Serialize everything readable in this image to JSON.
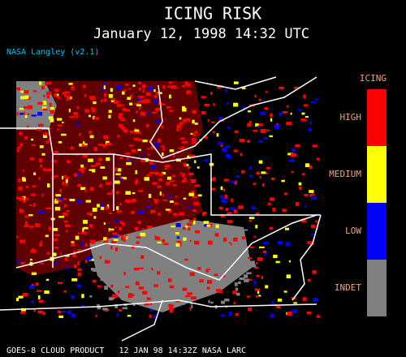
{
  "header": {
    "title": "ICING RISK",
    "subtitle": "January 12, 1998 14:32 UTC",
    "credit": "NASA Langley (v2.1)"
  },
  "legend": {
    "title": "ICING",
    "items": [
      {
        "label": "HIGH",
        "color": "#ff0000"
      },
      {
        "label": "MEDIUM",
        "color": "#ffff00"
      },
      {
        "label": "LOW",
        "color": "#0000ff"
      },
      {
        "label": "INDET",
        "color": "#808080"
      }
    ]
  },
  "footer": {
    "text": "GOES-8 CLOUD PRODUCT   12 JAN 98 14:32Z NASA LARC"
  }
}
